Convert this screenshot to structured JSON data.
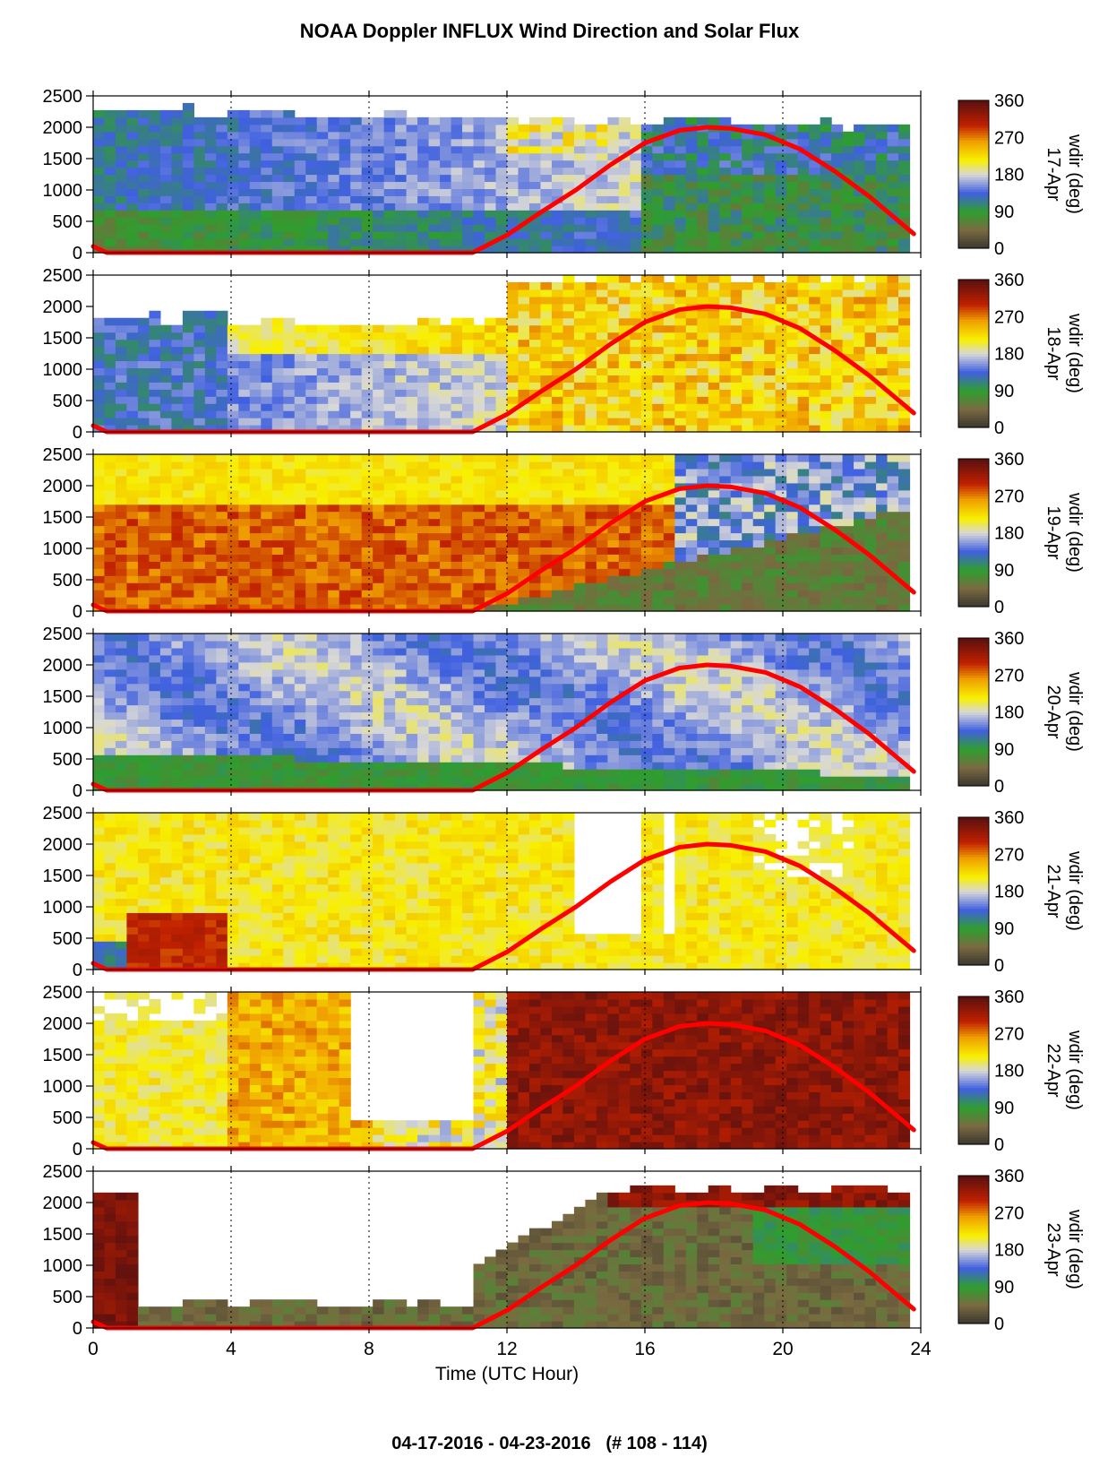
{
  "chart_data": {
    "type": "heatmap",
    "title": "NOAA Doppler INFLUX Wind Direction and Solar Flux",
    "footer": "04-17-2016 - 04-23-2016   (# 108 - 114)",
    "xlabel": "Time (UTC Hour)",
    "xlim": [
      0,
      24
    ],
    "xticks": [
      0,
      4,
      8,
      12,
      16,
      20,
      24
    ],
    "ylim": [
      0,
      2500
    ],
    "yticks": [
      0,
      500,
      1000,
      1500,
      2000,
      2500
    ],
    "grid": "vertical dotted at 4, 8, 12, 16, 20",
    "colorbar": {
      "label": "wdir (deg)",
      "ticks": [
        0,
        90,
        180,
        270,
        360
      ],
      "colors": [
        "#3a3530",
        "#7a6a40",
        "#2e9e2e",
        "#4060e0",
        "#d8d8d8",
        "#f8f000",
        "#f0a000",
        "#c02000",
        "#5a1010"
      ]
    },
    "solar_flux_curve": {
      "color": "#ff0000",
      "description": "zero until ~11 UTC, peaks ~2000 near 17.8 UTC, falls to ~300 at 23.8 UTC",
      "points": [
        [
          0,
          100
        ],
        [
          0.4,
          0
        ],
        [
          11,
          0
        ],
        [
          12,
          280
        ],
        [
          13,
          650
        ],
        [
          14,
          1000
        ],
        [
          15,
          1400
        ],
        [
          16,
          1750
        ],
        [
          17,
          1950
        ],
        [
          17.8,
          2000
        ],
        [
          18.5,
          1980
        ],
        [
          19.5,
          1880
        ],
        [
          20.5,
          1650
        ],
        [
          21.5,
          1300
        ],
        [
          22.5,
          900
        ],
        [
          23.8,
          300
        ]
      ]
    },
    "panels": [
      {
        "day": "17-Apr",
        "dominant": "green/blue low levels (~90-180 deg), warm colors aloft after 12 UTC"
      },
      {
        "day": "18-Apr",
        "dominant": "blue early shifting to yellow/orange (~180-270 deg) after 12 UTC"
      },
      {
        "day": "19-Apr",
        "dominant": "orange/red (~240-300 deg) early, becoming brown/green low after 12 UTC"
      },
      {
        "day": "20-Apr",
        "dominant": "blue/lavender (~120-200 deg) with green near surface"
      },
      {
        "day": "21-Apr",
        "dominant": "yellow (~200-250 deg) with red patch 1-4 UTC, gaps after 13 UTC"
      },
      {
        "day": "22-Apr",
        "dominant": "yellow early, dark red/brown (~300-360 deg) after 12 UTC"
      },
      {
        "day": "23-Apr",
        "dominant": "dark red near 0-1 UTC, olive/brown low levels, green aloft late"
      }
    ]
  }
}
